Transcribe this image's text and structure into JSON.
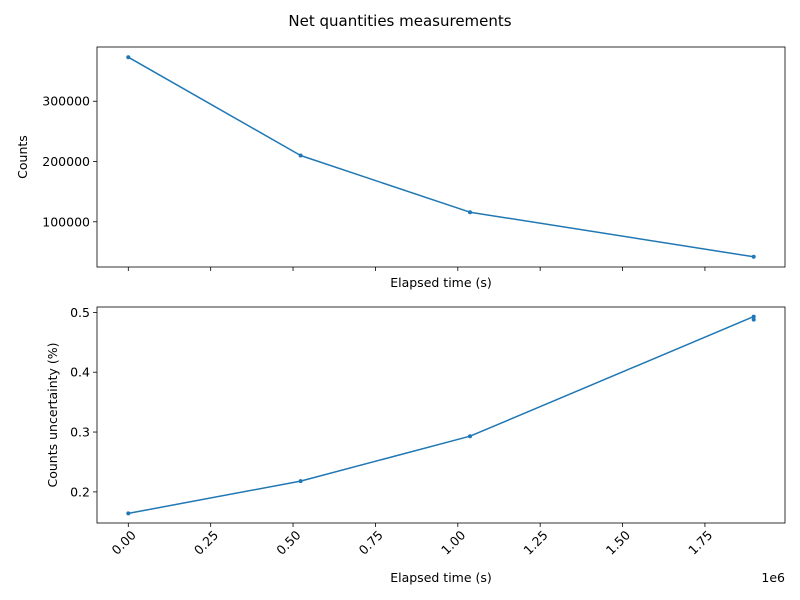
{
  "figure": {
    "title": "Net quantities measurements",
    "line_color": "#1f77b4"
  },
  "chart_data": [
    {
      "type": "line",
      "xlabel": "Elapsed time (s)",
      "ylabel": "Counts",
      "x": [
        0,
        523000,
        1037000,
        1898000
      ],
      "values": [
        373000,
        210000,
        116000,
        42000
      ],
      "xlim": [
        -95000,
        1993000
      ],
      "ylim": [
        25000,
        390000
      ],
      "xticks": [
        0,
        250000,
        500000,
        750000,
        1000000,
        1250000,
        1500000,
        1750000
      ],
      "xtick_labels_visible": false,
      "yticks": [
        100000,
        200000,
        300000
      ],
      "ytick_labels": [
        "100000",
        "200000",
        "300000"
      ],
      "grid": false
    },
    {
      "type": "line",
      "xlabel": "Elapsed time (s)",
      "ylabel": "Counts uncertainty (%)",
      "x": [
        0,
        523000,
        1037000,
        1898000,
        1898000
      ],
      "values": [
        0.164,
        0.218,
        0.293,
        0.493,
        0.488
      ],
      "xlim": [
        -95000,
        1993000
      ],
      "ylim": [
        0.148,
        0.509
      ],
      "xticks": [
        0,
        250000,
        500000,
        750000,
        1000000,
        1250000,
        1500000,
        1750000
      ],
      "xtick_labels": [
        "0.00",
        "0.25",
        "0.50",
        "0.75",
        "1.00",
        "1.25",
        "1.50",
        "1.75"
      ],
      "x_offset_label": "1e6",
      "yticks": [
        0.2,
        0.3,
        0.4,
        0.5
      ],
      "ytick_labels": [
        "0.2",
        "0.3",
        "0.4",
        "0.5"
      ],
      "grid": false
    }
  ]
}
